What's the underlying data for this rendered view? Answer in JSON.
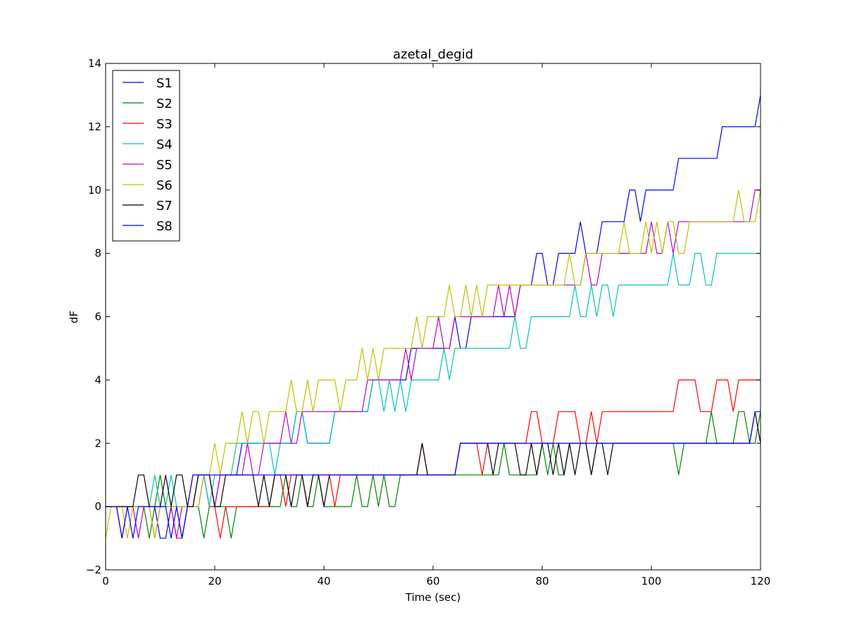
{
  "chart_data": {
    "type": "line",
    "title": "azetal_degid",
    "xlabel": "Time (sec)",
    "ylabel": "dF",
    "xlim": [
      0,
      120
    ],
    "ylim": [
      -2,
      14
    ],
    "xticks": [
      0,
      20,
      40,
      60,
      80,
      100,
      120
    ],
    "xtick_labels": [
      "0",
      "20",
      "40",
      "60",
      "80",
      "100",
      "120"
    ],
    "yticks": [
      -2,
      0,
      2,
      4,
      6,
      8,
      10,
      12,
      14
    ],
    "ytick_labels": [
      "−2",
      "0",
      "2",
      "4",
      "6",
      "8",
      "10",
      "12",
      "14"
    ],
    "grid": false,
    "legend_position": "upper-left",
    "x": [
      0,
      1,
      2,
      3,
      4,
      5,
      6,
      7,
      8,
      9,
      10,
      11,
      12,
      13,
      14,
      15,
      16,
      17,
      18,
      19,
      20,
      21,
      22,
      23,
      24,
      25,
      26,
      27,
      28,
      29,
      30,
      31,
      32,
      33,
      34,
      35,
      36,
      37,
      38,
      39,
      40,
      41,
      42,
      43,
      44,
      45,
      46,
      47,
      48,
      49,
      50,
      51,
      52,
      53,
      54,
      55,
      56,
      57,
      58,
      59,
      60,
      61,
      62,
      63,
      64,
      65,
      66,
      67,
      68,
      69,
      70,
      71,
      72,
      73,
      74,
      75,
      76,
      77,
      78,
      79,
      80,
      81,
      82,
      83,
      84,
      85,
      86,
      87,
      88,
      89,
      90,
      91,
      92,
      93,
      94,
      95,
      96,
      97,
      98,
      99,
      100,
      101,
      102,
      103,
      104,
      105,
      106,
      107,
      108,
      109,
      110,
      111,
      112,
      113,
      114,
      115,
      116,
      117,
      118,
      119,
      120
    ],
    "series": [
      {
        "name": "S1",
        "color": "#0000ff",
        "values": [
          0,
          0,
          0,
          0,
          0,
          0,
          0,
          0,
          0,
          0,
          -1,
          -1,
          0,
          0,
          0,
          0,
          0,
          0,
          1,
          1,
          0,
          1,
          1,
          1,
          1,
          2,
          2,
          2,
          2,
          2,
          2,
          2,
          2,
          2,
          2,
          3,
          3,
          2,
          2,
          2,
          2,
          2,
          3,
          3,
          3,
          3,
          3,
          3,
          3,
          4,
          4,
          4,
          4,
          4,
          4,
          4,
          5,
          5,
          5,
          5,
          5,
          5,
          5,
          5,
          6,
          5,
          5,
          6,
          6,
          6,
          6,
          6,
          6,
          6,
          6,
          6,
          7,
          7,
          7,
          8,
          8,
          7,
          7,
          8,
          8,
          8,
          8,
          9,
          8,
          8,
          8,
          9,
          9,
          9,
          9,
          9,
          10,
          10,
          9,
          10,
          10,
          10,
          10,
          10,
          10,
          11,
          11,
          11,
          11,
          11,
          11,
          11,
          11,
          12,
          12,
          12,
          12,
          12,
          12,
          12,
          13
        ]
      },
      {
        "name": "S2",
        "color": "#008000",
        "values": [
          0,
          0,
          0,
          0,
          0,
          0,
          0,
          0,
          -1,
          0,
          1,
          0,
          0,
          0,
          -1,
          0,
          0,
          0,
          -1,
          0,
          0,
          0,
          0,
          -1,
          0,
          0,
          0,
          0,
          0,
          0,
          0,
          0,
          0,
          1,
          0,
          0,
          1,
          0,
          0,
          1,
          0,
          0,
          0,
          0,
          0,
          0,
          1,
          0,
          0,
          1,
          0,
          1,
          0,
          0,
          1,
          1,
          1,
          1,
          1,
          1,
          1,
          1,
          1,
          1,
          1,
          1,
          1,
          1,
          1,
          1,
          1,
          1,
          1,
          2,
          1,
          1,
          1,
          1,
          1,
          1,
          2,
          1,
          2,
          1,
          1,
          2,
          2,
          2,
          2,
          1,
          2,
          2,
          2,
          2,
          2,
          2,
          2,
          2,
          2,
          2,
          2,
          2,
          2,
          2,
          2,
          1,
          2,
          2,
          2,
          2,
          2,
          3,
          2,
          2,
          2,
          2,
          3,
          3,
          2,
          2,
          3
        ]
      },
      {
        "name": "S3",
        "color": "#ff0000",
        "values": [
          0,
          0,
          0,
          0,
          0,
          0,
          0,
          0,
          0,
          0,
          0,
          0,
          0,
          -1,
          -1,
          0,
          0,
          1,
          1,
          0,
          0,
          -1,
          0,
          0,
          0,
          0,
          0,
          0,
          0,
          0,
          0,
          1,
          1,
          0,
          1,
          1,
          1,
          0,
          1,
          1,
          1,
          1,
          0,
          1,
          1,
          1,
          1,
          1,
          1,
          1,
          1,
          1,
          1,
          1,
          1,
          1,
          1,
          1,
          2,
          1,
          1,
          1,
          1,
          1,
          1,
          2,
          2,
          2,
          2,
          1,
          2,
          2,
          2,
          2,
          2,
          2,
          2,
          2,
          3,
          3,
          2,
          2,
          2,
          3,
          3,
          3,
          3,
          2,
          2,
          3,
          2,
          3,
          3,
          3,
          3,
          3,
          3,
          3,
          3,
          3,
          3,
          3,
          3,
          3,
          3,
          4,
          4,
          4,
          4,
          3,
          3,
          3,
          4,
          4,
          4,
          3,
          4,
          4,
          4,
          4,
          4
        ]
      },
      {
        "name": "S4",
        "color": "#00bfbf",
        "values": [
          0,
          0,
          0,
          0,
          0,
          0,
          0,
          0,
          0,
          1,
          0,
          0,
          1,
          0,
          0,
          0,
          0,
          1,
          1,
          0,
          1,
          1,
          1,
          1,
          2,
          2,
          2,
          2,
          2,
          2,
          2,
          1,
          2,
          2,
          2,
          3,
          3,
          2,
          2,
          2,
          2,
          2,
          3,
          3,
          3,
          3,
          3,
          3,
          3,
          4,
          4,
          3,
          4,
          3,
          4,
          3,
          4,
          4,
          4,
          4,
          4,
          4,
          5,
          4,
          5,
          5,
          5,
          5,
          5,
          5,
          5,
          5,
          5,
          5,
          5,
          6,
          5,
          5,
          6,
          6,
          6,
          6,
          6,
          6,
          6,
          6,
          7,
          6,
          6,
          7,
          6,
          7,
          7,
          6,
          7,
          7,
          7,
          7,
          7,
          7,
          7,
          7,
          7,
          7,
          8,
          7,
          7,
          7,
          8,
          8,
          7,
          7,
          8,
          8,
          8,
          8,
          8,
          8,
          8,
          8,
          8
        ]
      },
      {
        "name": "S5",
        "color": "#bf00bf",
        "values": [
          0,
          0,
          0,
          -1,
          0,
          0,
          -1,
          0,
          0,
          -1,
          0,
          0,
          0,
          -1,
          0,
          0,
          1,
          1,
          1,
          1,
          0,
          1,
          1,
          1,
          1,
          1,
          2,
          1,
          1,
          2,
          2,
          2,
          2,
          3,
          2,
          2,
          3,
          3,
          3,
          3,
          3,
          3,
          3,
          3,
          3,
          3,
          3,
          3,
          4,
          4,
          4,
          4,
          4,
          4,
          4,
          5,
          4,
          5,
          5,
          5,
          5,
          6,
          5,
          5,
          6,
          6,
          6,
          6,
          6,
          6,
          6,
          6,
          7,
          6,
          7,
          6,
          7,
          7,
          7,
          7,
          7,
          7,
          7,
          7,
          7,
          7,
          7,
          7,
          8,
          7,
          7,
          8,
          8,
          8,
          8,
          8,
          8,
          8,
          8,
          8,
          9,
          8,
          8,
          9,
          8,
          9,
          9,
          9,
          9,
          9,
          9,
          9,
          9,
          9,
          9,
          9,
          9,
          9,
          9,
          10,
          10
        ]
      },
      {
        "name": "S6",
        "color": "#bfbf00",
        "values": [
          -1,
          0,
          0,
          0,
          -1,
          0,
          0,
          0,
          0,
          -1,
          0,
          0,
          0,
          0,
          0,
          0,
          0,
          0,
          1,
          1,
          2,
          1,
          2,
          2,
          2,
          3,
          2,
          3,
          3,
          2,
          3,
          3,
          3,
          3,
          4,
          3,
          3,
          4,
          3,
          4,
          4,
          4,
          4,
          3,
          4,
          4,
          4,
          5,
          4,
          5,
          4,
          5,
          5,
          5,
          5,
          5,
          5,
          6,
          5,
          6,
          6,
          6,
          6,
          7,
          6,
          6,
          7,
          6,
          7,
          6,
          7,
          7,
          7,
          7,
          7,
          7,
          7,
          7,
          7,
          7,
          7,
          7,
          7,
          7,
          7,
          8,
          7,
          7,
          8,
          8,
          8,
          8,
          8,
          8,
          8,
          9,
          8,
          8,
          8,
          9,
          8,
          9,
          8,
          9,
          9,
          8,
          8,
          9,
          9,
          9,
          9,
          9,
          9,
          9,
          9,
          9,
          10,
          9,
          9,
          9,
          10
        ]
      },
      {
        "name": "S7",
        "color": "#000000",
        "values": [
          0,
          0,
          0,
          0,
          0,
          0,
          1,
          1,
          0,
          0,
          0,
          1,
          0,
          1,
          1,
          0,
          0,
          1,
          1,
          1,
          0,
          0,
          1,
          1,
          1,
          1,
          1,
          1,
          0,
          1,
          0,
          1,
          1,
          1,
          0,
          1,
          1,
          0,
          1,
          1,
          0,
          1,
          1,
          1,
          1,
          1,
          1,
          1,
          1,
          1,
          1,
          1,
          1,
          1,
          1,
          1,
          1,
          1,
          2,
          1,
          1,
          1,
          1,
          1,
          1,
          2,
          2,
          2,
          2,
          2,
          2,
          1,
          2,
          2,
          2,
          2,
          1,
          1,
          2,
          1,
          2,
          2,
          1,
          2,
          1,
          2,
          1,
          2,
          2,
          1,
          2,
          2,
          1,
          2,
          2,
          2,
          2,
          2,
          2,
          2,
          2,
          2,
          2,
          2,
          2,
          2,
          2,
          2,
          2,
          2,
          2,
          2,
          2,
          2,
          2,
          2,
          2,
          2,
          2,
          3,
          2
        ]
      },
      {
        "name": "S8",
        "color": "#0000ff",
        "values": [
          0,
          0,
          0,
          -1,
          0,
          -1,
          0,
          0,
          0,
          0,
          0,
          0,
          -1,
          0,
          -1,
          0,
          1,
          1,
          1,
          1,
          1,
          1,
          1,
          1,
          1,
          1,
          1,
          1,
          1,
          1,
          1,
          1,
          1,
          1,
          1,
          1,
          1,
          1,
          1,
          1,
          1,
          1,
          1,
          1,
          1,
          1,
          1,
          1,
          1,
          1,
          1,
          1,
          1,
          1,
          1,
          1,
          1,
          1,
          1,
          1,
          1,
          1,
          1,
          1,
          1,
          2,
          2,
          2,
          2,
          2,
          2,
          2,
          2,
          2,
          2,
          2,
          2,
          2,
          2,
          2,
          2,
          2,
          2,
          2,
          2,
          2,
          2,
          2,
          2,
          2,
          2,
          2,
          2,
          2,
          2,
          2,
          2,
          2,
          2,
          2,
          2,
          2,
          2,
          2,
          2,
          2,
          2,
          2,
          2,
          2,
          2,
          2,
          2,
          2,
          2,
          2,
          2,
          2,
          2,
          3,
          3
        ]
      }
    ]
  }
}
